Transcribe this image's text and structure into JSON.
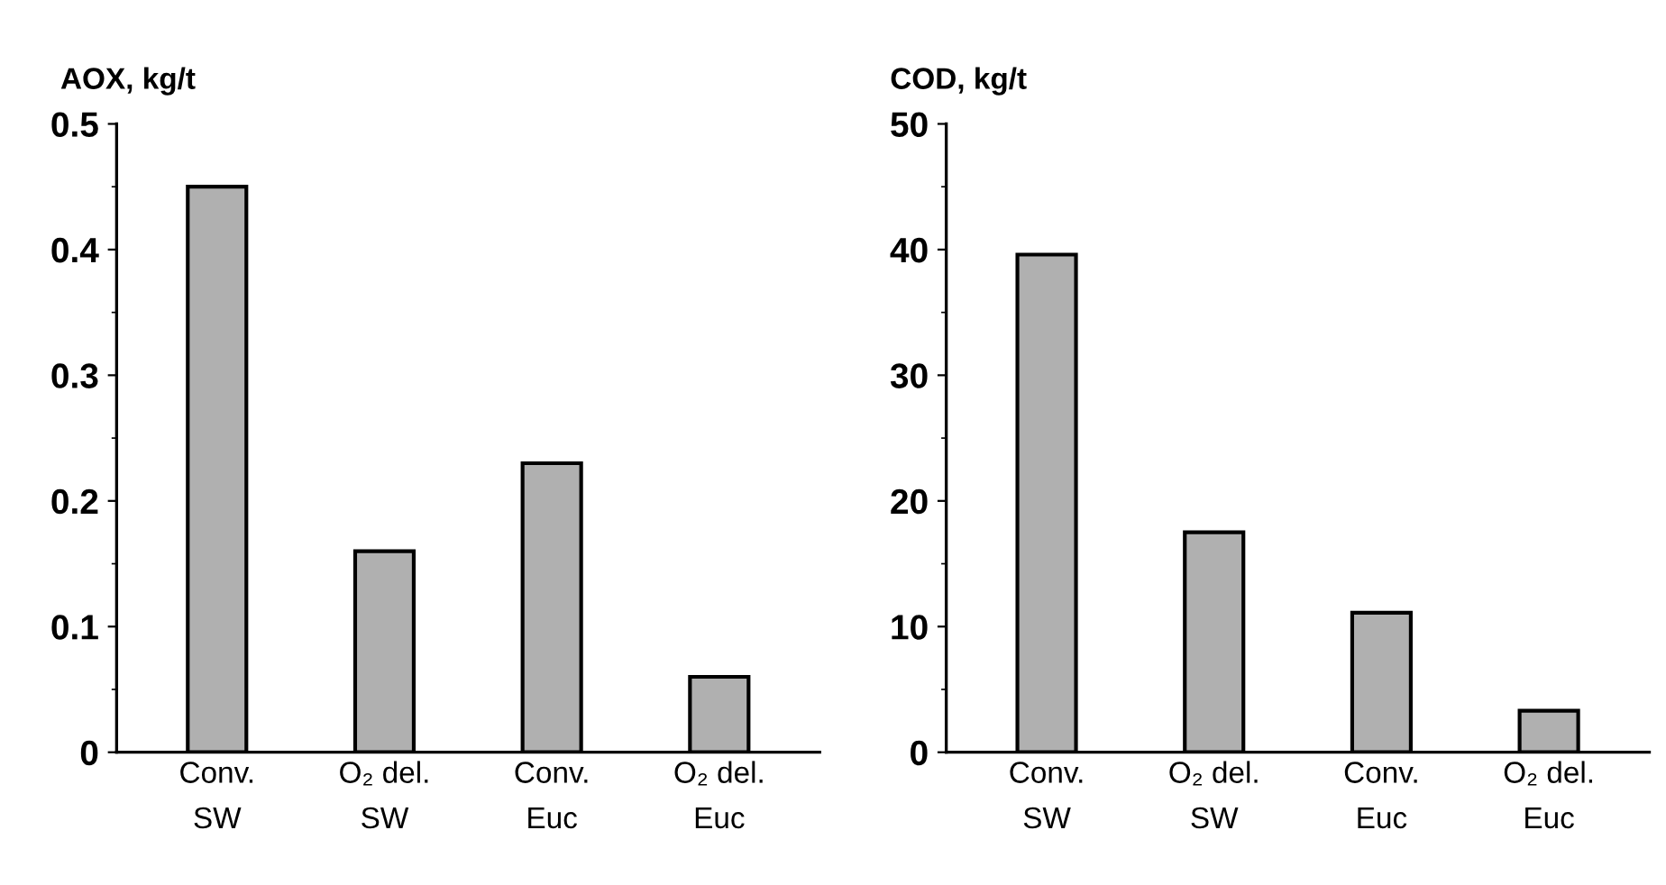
{
  "chart_data": [
    {
      "type": "bar",
      "title": "AOX, kg/t",
      "categories": [
        "Conv.\nSW",
        "O₂ del.\nSW",
        "Conv.\nEuc",
        "O₂ del.\nEuc"
      ],
      "values": [
        0.45,
        0.16,
        0.23,
        0.06
      ],
      "color": "#b0b0b0",
      "ylim": [
        0,
        0.5
      ],
      "yticks": [
        0,
        0.1,
        0.2,
        0.3,
        0.4,
        0.5
      ],
      "grid": false,
      "legend": false
    },
    {
      "type": "bar",
      "title": "COD, kg/t",
      "categories": [
        "Conv.\nSW",
        "O₂ del.\nSW",
        "Conv.\nEuc",
        "O₂ del.\nEuc"
      ],
      "values": [
        39.6,
        17.5,
        11.1,
        3.3
      ],
      "color": "#b0b0b0",
      "ylim": [
        0,
        50
      ],
      "yticks": [
        0,
        10,
        20,
        30,
        40,
        50
      ],
      "grid": false,
      "legend": false
    }
  ]
}
